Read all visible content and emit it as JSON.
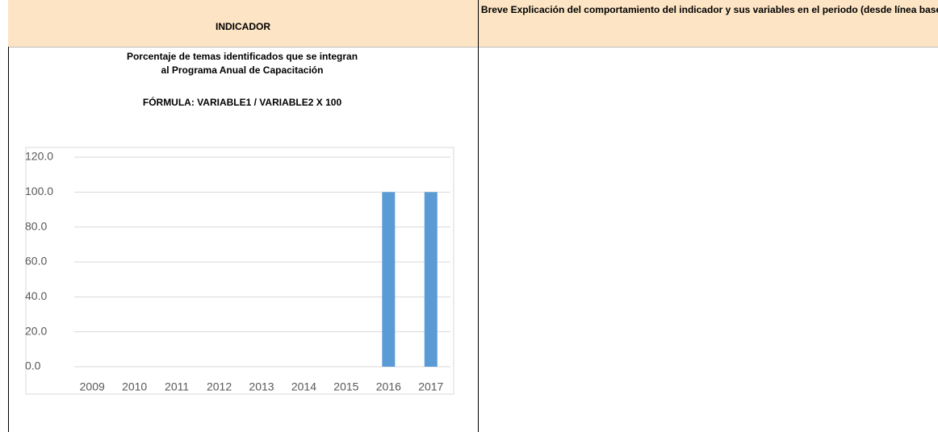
{
  "header": {
    "indicator": "INDICADOR",
    "explanation": "Breve Explicación del comportamiento del indicador y sus variables en el periodo (desde línea base)"
  },
  "chart_data": {
    "type": "bar",
    "title": [
      "Porcentaje de temas identificados que se integran",
      "al Programa Anual de Capacitación"
    ],
    "subtitle": "FÓRMULA: VARIABLE1 / VARIABLE2 X 100",
    "categories": [
      "2009",
      "2010",
      "2011",
      "2012",
      "2013",
      "2014",
      "2015",
      "2016",
      "2017"
    ],
    "values": [
      0,
      0,
      0,
      0,
      0,
      0,
      0,
      100,
      100
    ],
    "color": "#5b9bd5",
    "ylim": [
      0,
      120
    ],
    "yticks": [
      {
        "value": 0,
        "label": "0.0"
      },
      {
        "value": 20,
        "label": "20.0"
      },
      {
        "value": 40,
        "label": "40.0"
      },
      {
        "value": 60,
        "label": "60.0"
      },
      {
        "value": 80,
        "label": "80.0"
      },
      {
        "value": 100,
        "label": "100.0"
      },
      {
        "value": 120,
        "label": "120.0"
      }
    ],
    "grid": true
  }
}
